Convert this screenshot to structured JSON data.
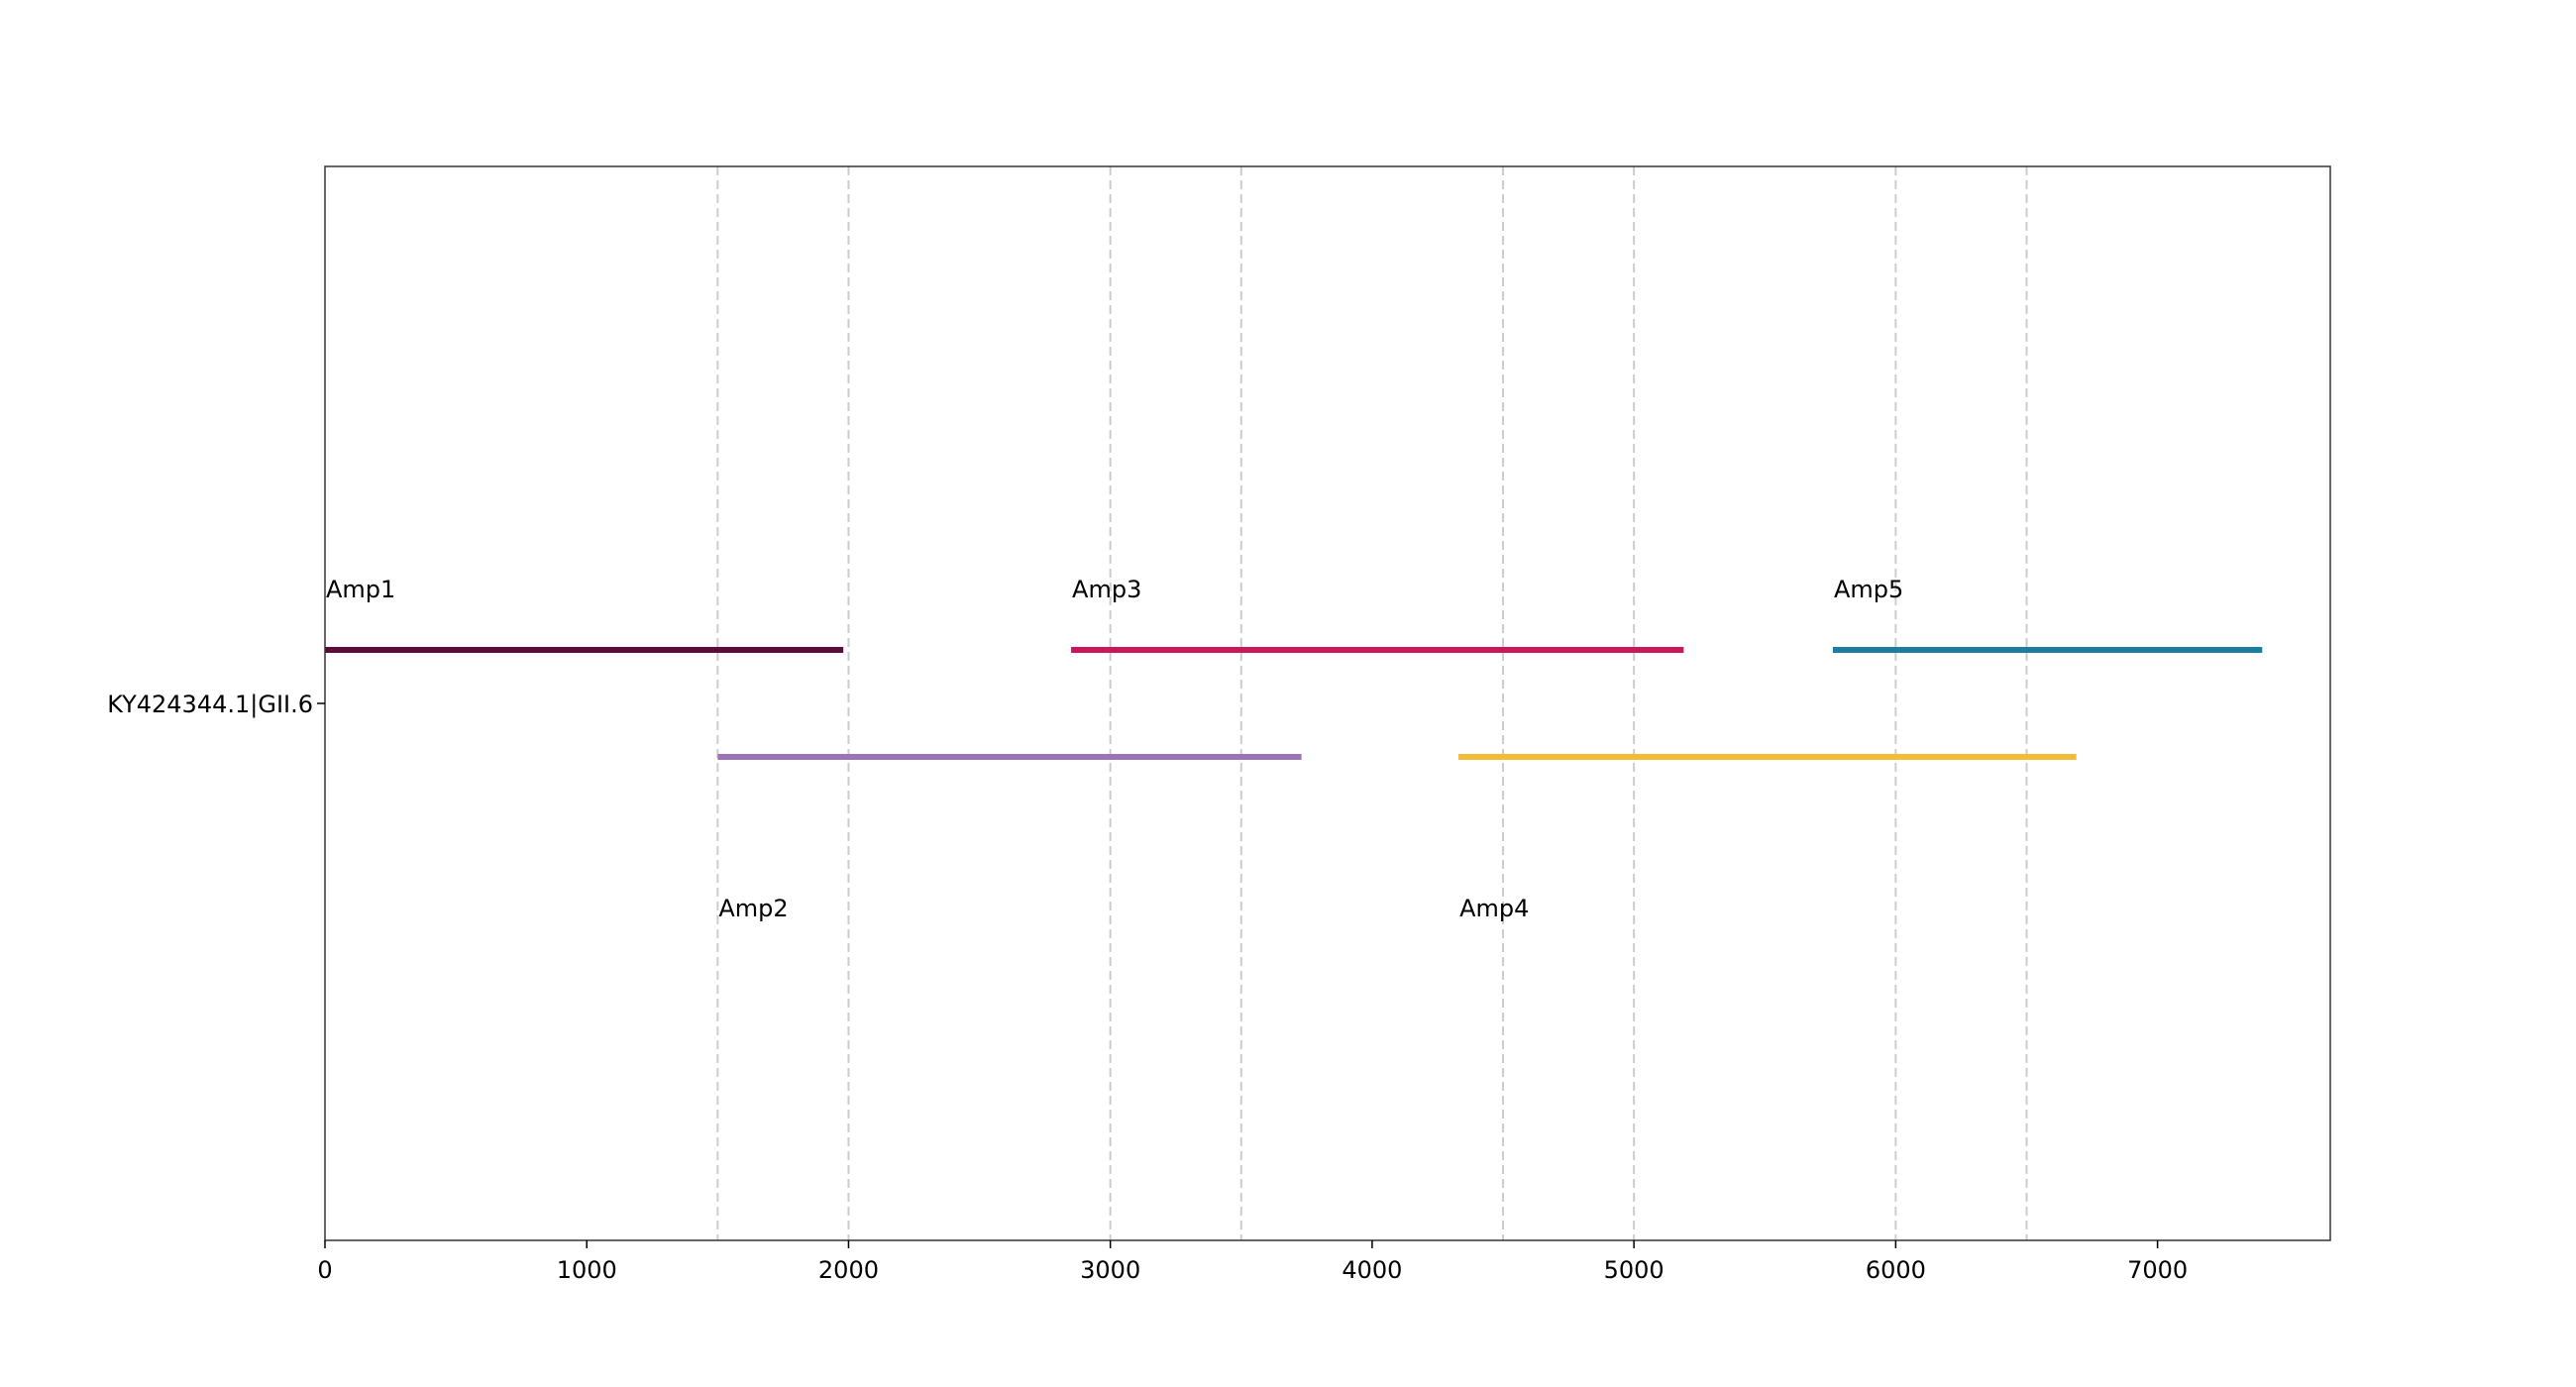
{
  "chart_data": {
    "type": "gantt",
    "title": "",
    "xlabel": "",
    "ylabel": "",
    "xlim": [
      0,
      7660
    ],
    "x_ticks": [
      0,
      1000,
      2000,
      3000,
      4000,
      5000,
      6000,
      7000
    ],
    "y_category": "KY424344.1|GII.6",
    "vertical_dashed_gridlines_at": [
      1500,
      2000,
      3000,
      3500,
      4500,
      5000,
      6000,
      6500
    ],
    "grid": false,
    "legend": "none",
    "amplicons": [
      {
        "label": "Amp1",
        "start": 0,
        "end": 1980,
        "row": "upper",
        "color": "#5c0b3a"
      },
      {
        "label": "Amp2",
        "start": 1500,
        "end": 3730,
        "row": "lower",
        "color": "#9c74b5"
      },
      {
        "label": "Amp3",
        "start": 2850,
        "end": 5190,
        "row": "upper",
        "color": "#c8175a"
      },
      {
        "label": "Amp4",
        "start": 4330,
        "end": 6690,
        "row": "lower",
        "color": "#f3bb36"
      },
      {
        "label": "Amp5",
        "start": 5760,
        "end": 7400,
        "row": "upper",
        "color": "#1b7ea0"
      }
    ]
  }
}
